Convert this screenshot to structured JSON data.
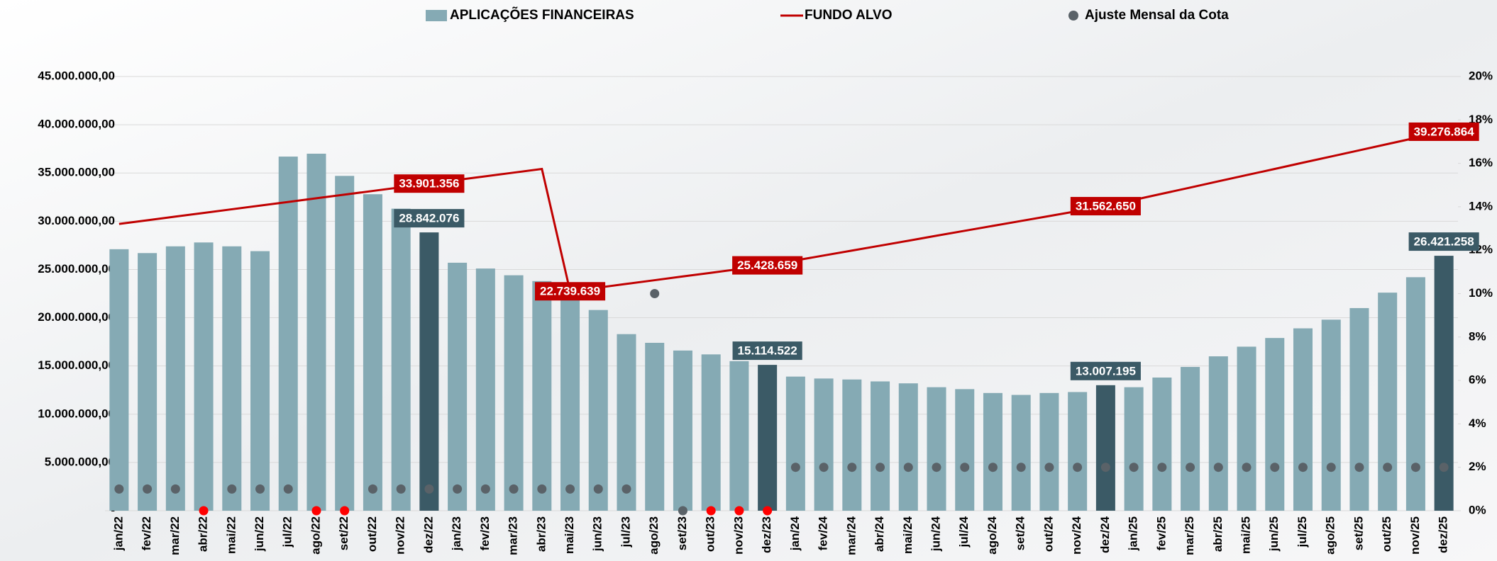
{
  "chart_data": {
    "type": "bar",
    "categories": [
      "jan/22",
      "fev/22",
      "mar/22",
      "abr/22",
      "mai/22",
      "jun/22",
      "jul/22",
      "ago/22",
      "set/22",
      "out/22",
      "nov/22",
      "dez/22",
      "jan/23",
      "fev/23",
      "mar/23",
      "abr/23",
      "mai/23",
      "jun/23",
      "jul/23",
      "ago/23",
      "set/23",
      "out/23",
      "nov/23",
      "dez/23",
      "jan/24",
      "fev/24",
      "mar/24",
      "abr/24",
      "mai/24",
      "jun/24",
      "jul/24",
      "ago/24",
      "set/24",
      "out/24",
      "nov/24",
      "dez/24",
      "jan/25",
      "fev/25",
      "mar/25",
      "abr/25",
      "mai/25",
      "jun/25",
      "jul/25",
      "ago/25",
      "set/25",
      "out/25",
      "nov/25",
      "dez/25"
    ],
    "series": [
      {
        "name": "APLICAÇÕES FINANCEIRAS",
        "type": "bar",
        "color": "#85aab4",
        "highlight_color": "#3b5a66",
        "values": [
          27100000,
          26700000,
          27400000,
          27800000,
          27400000,
          26900000,
          36700000,
          37000000,
          34700000,
          32800000,
          31300000,
          28842076,
          25700000,
          25100000,
          24400000,
          23800000,
          22200000,
          20800000,
          18300000,
          17400000,
          16600000,
          16200000,
          15500000,
          15114522,
          13900000,
          13700000,
          13600000,
          13400000,
          13200000,
          12800000,
          12600000,
          12200000,
          12000000,
          12200000,
          12300000,
          13007195,
          12800000,
          13800000,
          14900000,
          16000000,
          17000000,
          17900000,
          18900000,
          19800000,
          21000000,
          22600000,
          24200000,
          26421258
        ],
        "value_labels": [
          null,
          null,
          null,
          null,
          null,
          null,
          null,
          null,
          null,
          null,
          null,
          "28.842.076",
          null,
          null,
          null,
          null,
          null,
          null,
          null,
          null,
          null,
          null,
          null,
          "15.114.522",
          null,
          null,
          null,
          null,
          null,
          null,
          null,
          null,
          null,
          null,
          null,
          "13.007.195",
          null,
          null,
          null,
          null,
          null,
          null,
          null,
          null,
          null,
          null,
          null,
          "26.421.258"
        ]
      },
      {
        "name": "FUNDO ALVO",
        "type": "line",
        "color": "#c00000",
        "values": [
          29720000,
          30100000,
          30480000,
          30860000,
          31240000,
          31620000,
          32000000,
          32380000,
          32760000,
          33140000,
          33520000,
          33901356,
          34280000,
          34660000,
          35040000,
          35420000,
          22739639,
          23120000,
          23510000,
          23890000,
          24280000,
          24660000,
          25040000,
          25428659,
          25940000,
          26450000,
          26960000,
          27470000,
          27980000,
          28500000,
          29010000,
          29520000,
          30030000,
          30540000,
          31050000,
          31562650,
          32210000,
          32850000,
          33490000,
          34140000,
          34780000,
          35420000,
          36070000,
          36710000,
          37350000,
          38000000,
          38640000,
          39276864
        ],
        "value_labels": [
          null,
          null,
          null,
          null,
          null,
          null,
          null,
          null,
          null,
          null,
          null,
          "33.901.356",
          null,
          null,
          null,
          null,
          "22.739.639",
          null,
          null,
          null,
          null,
          null,
          null,
          "25.428.659",
          null,
          null,
          null,
          null,
          null,
          null,
          null,
          null,
          null,
          null,
          null,
          "31.562.650",
          null,
          null,
          null,
          null,
          null,
          null,
          null,
          null,
          null,
          null,
          null,
          "39.276.864"
        ]
      },
      {
        "name": "Ajuste Mensal da Cota",
        "type": "scatter",
        "axis": "y2",
        "color": "#5a6268",
        "values": [
          1,
          1,
          1,
          0,
          1,
          1,
          1,
          0,
          0,
          1,
          1,
          1,
          1,
          1,
          1,
          1,
          1,
          1,
          1,
          10,
          0,
          0,
          0,
          0,
          2,
          2,
          2,
          2,
          2,
          2,
          2,
          2,
          2,
          2,
          2,
          2,
          2,
          2,
          2,
          2,
          2,
          2,
          2,
          2,
          2,
          2,
          2,
          2
        ],
        "colors": [
          "#5a6268",
          "#5a6268",
          "#5a6268",
          "#ff0000",
          "#5a6268",
          "#5a6268",
          "#5a6268",
          "#ff0000",
          "#ff0000",
          "#5a6268",
          "#5a6268",
          "#5a6268",
          "#5a6268",
          "#5a6268",
          "#5a6268",
          "#5a6268",
          "#5a6268",
          "#5a6268",
          "#5a6268",
          "#5a6268",
          "#5a6268",
          "#ff0000",
          "#ff0000",
          "#ff0000",
          "#5a6268",
          "#5a6268",
          "#5a6268",
          "#5a6268",
          "#5a6268",
          "#5a6268",
          "#5a6268",
          "#5a6268",
          "#5a6268",
          "#5a6268",
          "#5a6268",
          "#5a6268",
          "#5a6268",
          "#5a6268",
          "#5a6268",
          "#5a6268",
          "#5a6268",
          "#5a6268",
          "#5a6268",
          "#5a6268",
          "#5a6268",
          "#5a6268",
          "#5a6268",
          "#5a6268"
        ]
      }
    ],
    "ylim": [
      0,
      45000000
    ],
    "yticks": [
      {
        "value": 0,
        "label": "-"
      },
      {
        "value": 5000000,
        "label": "5.000.000,00"
      },
      {
        "value": 10000000,
        "label": "10.000.000,00"
      },
      {
        "value": 15000000,
        "label": "15.000.000,00"
      },
      {
        "value": 20000000,
        "label": "20.000.000,00"
      },
      {
        "value": 25000000,
        "label": "25.000.000,00"
      },
      {
        "value": 30000000,
        "label": "30.000.000,00"
      },
      {
        "value": 35000000,
        "label": "35.000.000,00"
      },
      {
        "value": 40000000,
        "label": "40.000.000,00"
      },
      {
        "value": 45000000,
        "label": "45.000.000,00"
      }
    ],
    "y2lim": [
      0,
      20
    ],
    "y2ticks": [
      {
        "value": 0,
        "label": "0%"
      },
      {
        "value": 2,
        "label": "2%"
      },
      {
        "value": 4,
        "label": "4%"
      },
      {
        "value": 6,
        "label": "6%"
      },
      {
        "value": 8,
        "label": "8%"
      },
      {
        "value": 10,
        "label": "10%"
      },
      {
        "value": 12,
        "label": "12%"
      },
      {
        "value": 14,
        "label": "14%"
      },
      {
        "value": 16,
        "label": "16%"
      },
      {
        "value": 18,
        "label": "18%"
      },
      {
        "value": 20,
        "label": "20%"
      }
    ],
    "grid": true,
    "legend": "top"
  }
}
